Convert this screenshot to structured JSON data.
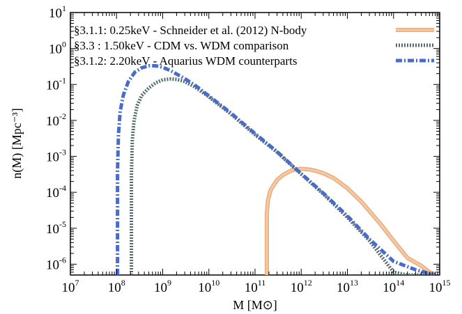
{
  "chart_data": {
    "type": "line",
    "title": "",
    "xlabel": "M [M⊙]",
    "ylabel": "n(M) [Mpc⁻³]",
    "xscale": "log",
    "yscale": "log",
    "xlim": [
      10000000.0,
      1000000000000000.0
    ],
    "ylim": [
      5e-07,
      10
    ],
    "x_ticks": [
      {
        "base": "10",
        "exp": "7"
      },
      {
        "base": "10",
        "exp": "8"
      },
      {
        "base": "10",
        "exp": "9"
      },
      {
        "base": "10",
        "exp": "10"
      },
      {
        "base": "10",
        "exp": "11"
      },
      {
        "base": "10",
        "exp": "12"
      },
      {
        "base": "10",
        "exp": "13"
      },
      {
        "base": "10",
        "exp": "14"
      },
      {
        "base": "10",
        "exp": "15"
      }
    ],
    "y_ticks": [
      {
        "base": "10",
        "exp": "1"
      },
      {
        "base": "10",
        "exp": "0"
      },
      {
        "base": "10",
        "exp": "-1"
      },
      {
        "base": "10",
        "exp": "-2"
      },
      {
        "base": "10",
        "exp": "-3"
      },
      {
        "base": "10",
        "exp": "-4"
      },
      {
        "base": "10",
        "exp": "-5"
      },
      {
        "base": "10",
        "exp": "-6"
      }
    ],
    "grid": false,
    "legend_position": "top-right",
    "series": [
      {
        "name": "§3.1.1: 0.25keV - Schneider et al. (2012) N-body",
        "color": "#f6c9a3",
        "style": "solid",
        "x": [
          180000000000.0,
          180000000000.0,
          190000000000.0,
          220000000000.0,
          300000000000.0,
          400000000000.0,
          600000000000.0,
          800000000000.0,
          1000000000000.0,
          1500000000000.0,
          2000000000000.0,
          3000000000000.0,
          5000000000000.0,
          10000000000000.0,
          20000000000000.0,
          50000000000000.0,
          100000000000000.0,
          200000000000000.0,
          400000000000000.0,
          600000000000000.0,
          800000000000000.0
        ],
        "y": [
          5e-07,
          2.5e-05,
          6e-05,
          0.00012,
          0.00022,
          0.0003,
          0.0004,
          0.00044,
          0.00045,
          0.00043,
          0.0004,
          0.00034,
          0.00025,
          0.00013,
          5.5e-05,
          1.4e-05,
          4.5e-06,
          1.5e-06,
          9e-07,
          6e-07,
          5e-07
        ]
      },
      {
        "name": "§3.3   : 1.50keV - CDM vs. WDM comparison",
        "color": "#4f6b6b",
        "style": "dotted",
        "x": [
          210000000.0,
          210000000.0,
          220000000.0,
          240000000.0,
          280000000.0,
          350000000.0,
          500000000.0,
          700000000.0,
          1000000000.0,
          1500000000.0,
          2000000000.0,
          3000000000.0,
          5000000000.0,
          10000000000.0,
          30000000000.0,
          100000000000.0,
          300000000000.0,
          1000000000000.0,
          3000000000000.0,
          10000000000000.0,
          30000000000000.0,
          100000000000000.0,
          200000000000000.0,
          400000000000000.0,
          600000000000000.0,
          800000000000000.0
        ],
        "y": [
          5e-07,
          0.0003,
          0.003,
          0.01,
          0.026,
          0.049,
          0.08,
          0.11,
          0.135,
          0.142,
          0.138,
          0.12,
          0.085,
          0.045,
          0.015,
          0.004,
          0.0013,
          0.00032,
          9e-05,
          2e-05,
          4.5e-06,
          6e-07,
          5e-07,
          5e-07,
          5e-07,
          5e-07
        ]
      },
      {
        "name": "§3.1.2: 2.20keV - Aquarius WDM counterparts",
        "color": "#4a6cc9",
        "style": "dashdot",
        "x": [
          105000000.0,
          105000000.0,
          110000000.0,
          120000000.0,
          140000000.0,
          180000000.0,
          250000000.0,
          350000000.0,
          500000000.0,
          700000000.0,
          1000000000.0,
          1500000000.0,
          2000000000.0,
          3000000000.0,
          5000000000.0,
          10000000000.0,
          30000000000.0,
          100000000000.0,
          300000000000.0,
          1000000000000.0,
          3000000000000.0,
          10000000000000.0,
          30000000000000.0,
          100000000000000.0,
          300000000000000.0,
          600000000000000.0,
          800000000000000.0
        ],
        "y": [
          5e-07,
          0.0004,
          0.004,
          0.018,
          0.05,
          0.12,
          0.22,
          0.29,
          0.33,
          0.33,
          0.3,
          0.24,
          0.195,
          0.145,
          0.095,
          0.048,
          0.016,
          0.0043,
          0.00135,
          0.00033,
          9.5e-05,
          2.2e-05,
          5e-06,
          1.2e-06,
          7e-07,
          5.5e-07,
          5e-07
        ]
      }
    ]
  }
}
